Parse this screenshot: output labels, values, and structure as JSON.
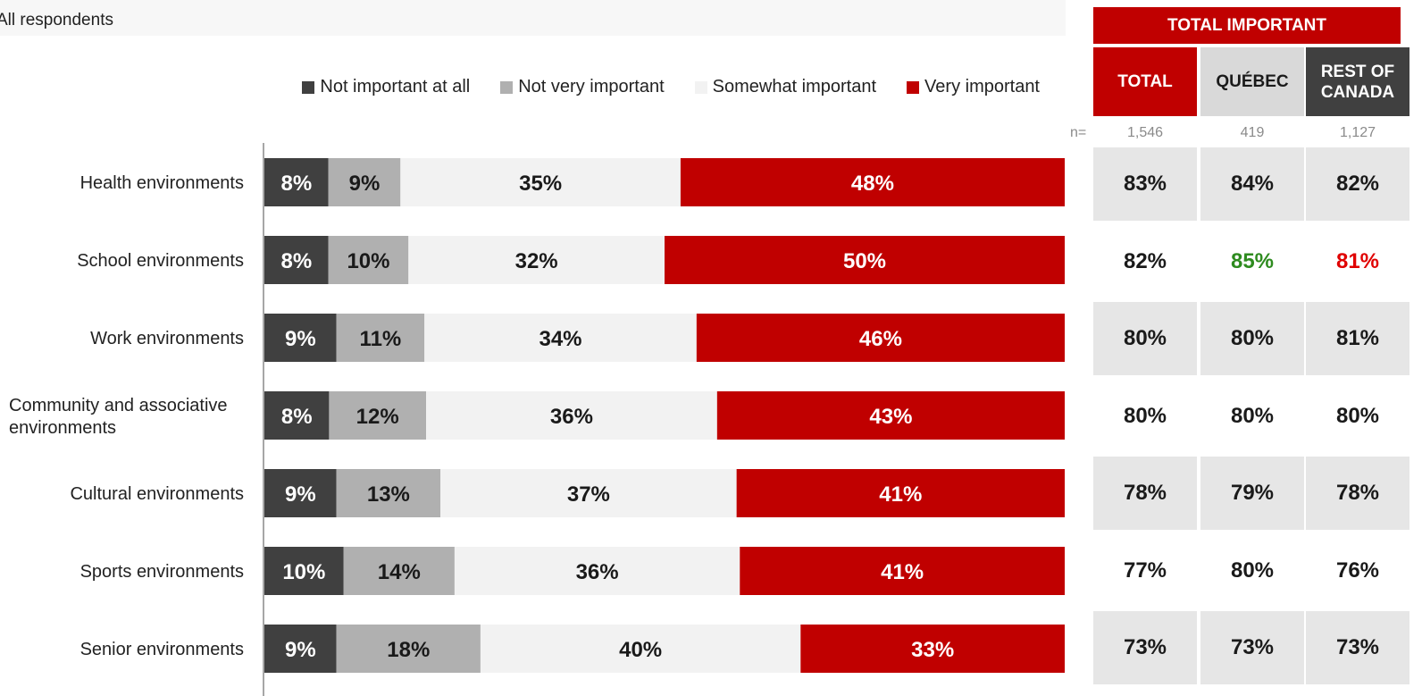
{
  "subtitle": "All respondents",
  "colors": {
    "not_at_all": "#404040",
    "not_very": "#b0b0b0",
    "somewhat": "#f2f2f2",
    "very": "#c00000",
    "header_red": "#c00000",
    "quebec_head": "#d9d9d9",
    "roc_head": "#404040",
    "cell_shade": "#e6e6e6",
    "sig_high": "#2e8b1f",
    "sig_low": "#e00000"
  },
  "chart_data": {
    "type": "bar",
    "orientation": "horizontal-stacked",
    "categories": [
      "Health environments",
      "School environments",
      "Work environments",
      "Community and associative environments",
      "Cultural environments",
      "Sports environments",
      "Senior environments"
    ],
    "series": [
      {
        "name": "Not important at all",
        "values": [
          8,
          8,
          9,
          8,
          9,
          10,
          9
        ]
      },
      {
        "name": "Not very important",
        "values": [
          9,
          10,
          11,
          12,
          13,
          14,
          18
        ]
      },
      {
        "name": "Somewhat important",
        "values": [
          35,
          32,
          34,
          36,
          37,
          36,
          40
        ]
      },
      {
        "name": "Very important",
        "values": [
          48,
          50,
          46,
          43,
          41,
          41,
          33
        ]
      }
    ],
    "value_suffix": "%",
    "legend_position": "top"
  },
  "table": {
    "title": "TOTAL IMPORTANT",
    "n_label": "n=",
    "columns": [
      {
        "label_lines": [
          "TOTAL"
        ],
        "n": "1,546"
      },
      {
        "label_lines": [
          "QUÉBEC"
        ],
        "n": "419"
      },
      {
        "label_lines": [
          "REST OF",
          "CANADA"
        ],
        "n": "1,127"
      }
    ],
    "rows": [
      [
        "83%",
        "84%",
        "82%"
      ],
      [
        "82%",
        "85%",
        "81%"
      ],
      [
        "80%",
        "80%",
        "81%"
      ],
      [
        "80%",
        "80%",
        "80%"
      ],
      [
        "78%",
        "79%",
        "78%"
      ],
      [
        "77%",
        "80%",
        "76%"
      ],
      [
        "73%",
        "73%",
        "73%"
      ]
    ],
    "highlights": [
      {
        "row": 1,
        "col": 1,
        "level": "high"
      },
      {
        "row": 1,
        "col": 2,
        "level": "low"
      }
    ]
  }
}
